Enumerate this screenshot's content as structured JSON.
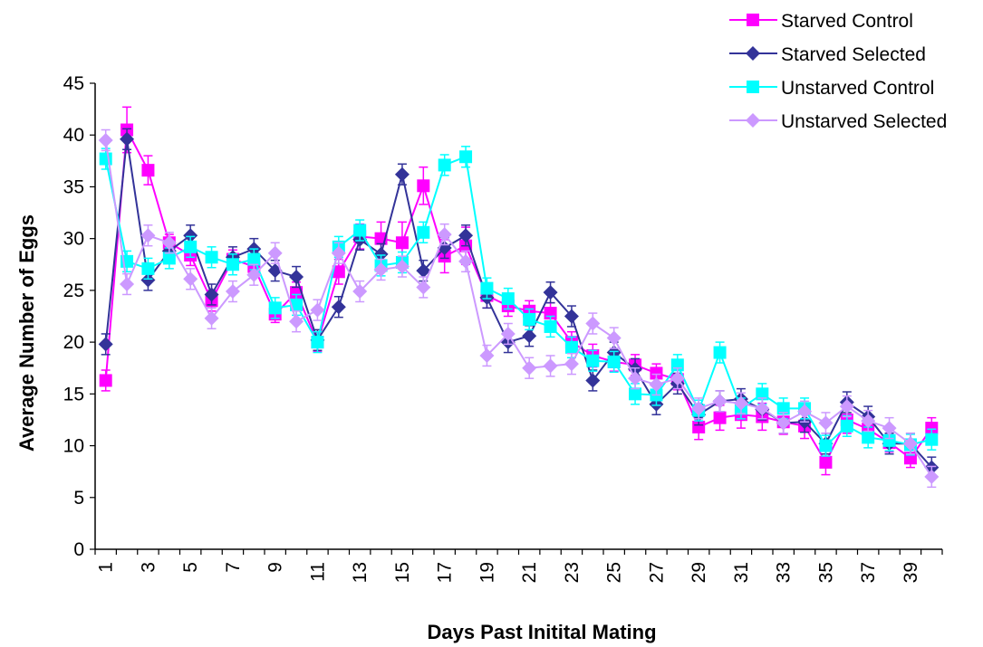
{
  "chart_data": {
    "type": "line",
    "title": "",
    "xlabel": "Days Past Initital Mating",
    "ylabel": "Average Number of Eggs",
    "ylim": [
      0,
      45
    ],
    "yticks": [
      0,
      5,
      10,
      15,
      20,
      25,
      30,
      35,
      40,
      45
    ],
    "x": [
      1,
      2,
      3,
      4,
      5,
      6,
      7,
      8,
      9,
      10,
      11,
      12,
      13,
      14,
      15,
      16,
      17,
      18,
      19,
      20,
      21,
      22,
      23,
      24,
      25,
      26,
      27,
      28,
      29,
      30,
      31,
      32,
      33,
      34,
      35,
      36,
      37,
      38,
      39,
      40
    ],
    "xtick_labels": [
      "1",
      "3",
      "5",
      "7",
      "9",
      "11",
      "13",
      "15",
      "17",
      "19",
      "21",
      "23",
      "25",
      "27",
      "29",
      "31",
      "33",
      "35",
      "37",
      "39"
    ],
    "grid": false,
    "legend_position": "top-right",
    "series": [
      {
        "name": "Starved Control",
        "color": "#ff00ff",
        "marker": "square",
        "values": [
          16.3,
          40.5,
          36.6,
          29.6,
          28.4,
          24.0,
          28.0,
          27.3,
          22.7,
          24.8,
          20.0,
          26.8,
          30.2,
          30.0,
          29.6,
          35.1,
          28.3,
          29.3,
          24.5,
          23.5,
          23.0,
          22.8,
          20.0,
          18.7,
          18.1,
          17.8,
          17.0,
          16.4,
          11.8,
          12.7,
          13.0,
          12.8,
          12.3,
          11.9,
          8.4,
          12.5,
          11.6,
          10.3,
          8.8,
          11.7
        ],
        "errors": [
          1.0,
          2.2,
          1.4,
          0.8,
          1.0,
          1.0,
          0.9,
          0.9,
          0.8,
          1.0,
          0.9,
          1.2,
          1.2,
          1.6,
          2.0,
          1.8,
          1.6,
          1.8,
          1.2,
          1.0,
          1.0,
          1.0,
          1.0,
          1.1,
          0.9,
          1.0,
          0.9,
          1.0,
          1.2,
          1.2,
          1.3,
          1.3,
          1.2,
          1.2,
          1.2,
          1.3,
          1.0,
          0.9,
          0.9,
          1.0
        ]
      },
      {
        "name": "Starved Selected",
        "color": "#333399",
        "marker": "diamond",
        "values": [
          19.8,
          39.6,
          26.0,
          28.8,
          30.3,
          24.6,
          28.2,
          29.0,
          26.9,
          26.3,
          20.2,
          23.4,
          29.9,
          28.5,
          36.2,
          26.9,
          29.1,
          30.3,
          24.3,
          20.0,
          20.6,
          24.8,
          22.5,
          16.3,
          19.0,
          17.4,
          14.0,
          16.0,
          13.0,
          14.3,
          14.5,
          13.5,
          12.2,
          12.3,
          10.2,
          14.2,
          12.8,
          10.2,
          10.2,
          7.9
        ]
      },
      {
        "name": "Unstarved Control",
        "color": "#00ffff",
        "marker": "square",
        "values": [
          37.7,
          27.8,
          27.1,
          28.1,
          29.2,
          28.2,
          27.5,
          28.0,
          23.3,
          23.6,
          20.0,
          29.2,
          30.8,
          27.4,
          27.7,
          30.6,
          37.1,
          37.9,
          25.2,
          24.2,
          22.2,
          21.5,
          19.5,
          18.2,
          18.1,
          15.0,
          14.9,
          17.8,
          13.4,
          19.0,
          13.6,
          15.0,
          13.6,
          13.6,
          10.0,
          11.9,
          10.8,
          10.5,
          10.1,
          10.6
        ]
      },
      {
        "name": "Unstarved Selected",
        "color": "#cc99ff",
        "marker": "diamond",
        "values": [
          39.5,
          25.6,
          30.3,
          29.6,
          26.1,
          22.3,
          24.9,
          26.5,
          28.6,
          22.0,
          23.1,
          28.6,
          24.9,
          27.0,
          27.3,
          25.3,
          30.4,
          27.8,
          18.7,
          20.8,
          17.5,
          17.7,
          17.9,
          21.8,
          20.4,
          16.5,
          15.9,
          16.5,
          13.6,
          14.3,
          14.1,
          13.6,
          12.2,
          13.3,
          12.2,
          13.8,
          12.4,
          11.7,
          10.2,
          7.0
        ]
      }
    ]
  }
}
